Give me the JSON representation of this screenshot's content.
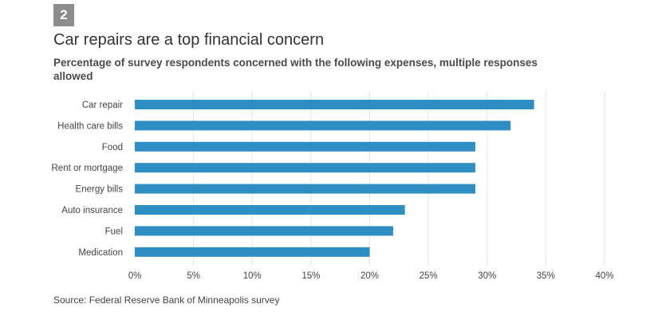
{
  "badge": "2",
  "title": "Car repairs are a top financial concern",
  "subtitle": "Percentage of survey respondents concerned with the following expenses, multiple responses allowed",
  "source": "Source: Federal Reserve Bank of Minneapolis survey",
  "colors": {
    "bar": "#2e8fc4",
    "grid": "#e3e3e3",
    "text": "#444444"
  },
  "chart_data": {
    "type": "bar",
    "orientation": "horizontal",
    "title": "Car repairs are a top financial concern",
    "subtitle": "Percentage of survey respondents concerned with the following expenses, multiple responses allowed",
    "xlabel": "",
    "ylabel": "",
    "categories": [
      "Car repair",
      "Health care bills",
      "Food",
      "Rent or mortgage",
      "Energy bills",
      "Auto insurance",
      "Fuel",
      "Medication"
    ],
    "values": [
      34,
      32,
      29,
      29,
      29,
      23,
      22,
      20
    ],
    "unit": "%",
    "xlim": [
      0,
      40
    ],
    "ticks": [
      0,
      5,
      10,
      15,
      20,
      25,
      30,
      35,
      40
    ],
    "tick_labels": [
      "0%",
      "5%",
      "10%",
      "15%",
      "20%",
      "25%",
      "30%",
      "35%",
      "40%"
    ],
    "grid": true,
    "legend": "none"
  }
}
